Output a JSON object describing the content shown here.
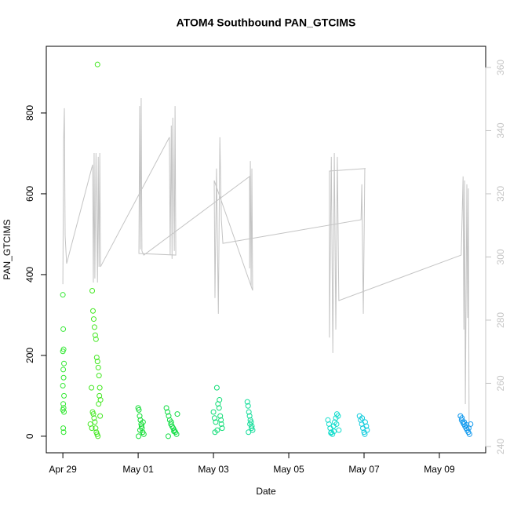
{
  "chart_data": {
    "type": "scatter",
    "title": "ATOM4 Southbound PAN_GTCIMS",
    "x_label": "Date",
    "y_label": "PAN_GTCIMS",
    "xlim": [
      -0.44,
      11.23
    ],
    "ylim": [
      -41,
      965
    ],
    "y2lim": [
      238,
      366.7
    ],
    "xticks": [
      {
        "value": 0,
        "label": "Apr 29"
      },
      {
        "value": 2,
        "label": "May 01"
      },
      {
        "value": 4,
        "label": "May 03"
      },
      {
        "value": 6,
        "label": "May 05"
      },
      {
        "value": 8,
        "label": "May 07"
      },
      {
        "value": 10,
        "label": "May 09"
      }
    ],
    "yticks": [
      0,
      200,
      400,
      600,
      800
    ],
    "y2ticks": [
      240,
      260,
      280,
      300,
      320,
      340,
      360
    ],
    "series": [
      {
        "color": "#33e833",
        "x": [
          0.0,
          0.01,
          0.02,
          0.0,
          0.03,
          0.01,
          0.02,
          0.0,
          0.03,
          0.01,
          0.02,
          0.0,
          0.03,
          0.01,
          0.02
        ],
        "values": [
          350,
          265,
          215,
          210,
          180,
          165,
          145,
          125,
          100,
          80,
          70,
          65,
          60,
          20,
          10
        ]
      },
      {
        "color": "#44e822",
        "x": [
          0.73,
          0.76,
          0.78,
          0.8,
          0.82,
          0.84,
          0.86,
          0.88,
          0.9,
          0.92,
          0.94,
          0.96,
          0.98,
          1.0,
          0.79,
          0.81,
          0.83,
          0.85,
          0.87,
          0.89,
          0.91,
          0.93,
          0.95,
          0.97,
          0.99,
          0.77,
          0.92
        ],
        "values": [
          30,
          120,
          360,
          310,
          290,
          270,
          250,
          240,
          195,
          185,
          170,
          150,
          120,
          90,
          60,
          55,
          45,
          35,
          20,
          10,
          5,
          0,
          80,
          100,
          50,
          20,
          920
        ]
      },
      {
        "color": "#11dd33",
        "x": [
          2.0,
          2.02,
          2.04,
          2.06,
          2.08,
          2.1,
          2.12,
          2.15,
          2.01,
          2.05,
          2.09,
          2.13
        ],
        "values": [
          70,
          65,
          50,
          40,
          30,
          20,
          10,
          5,
          0,
          15,
          25,
          35
        ]
      },
      {
        "color": "#11dd44",
        "x": [
          2.75,
          2.78,
          2.81,
          2.84,
          2.87,
          2.9,
          2.93,
          2.96,
          2.99,
          3.02,
          3.04,
          2.8,
          2.88,
          2.95
        ],
        "values": [
          70,
          60,
          50,
          40,
          30,
          25,
          20,
          15,
          10,
          5,
          55,
          0,
          35,
          12
        ]
      },
      {
        "color": "#11dd77",
        "x": [
          4.0,
          4.03,
          4.06,
          4.09,
          4.12,
          4.15,
          4.18,
          4.21,
          4.23,
          4.04,
          4.1,
          4.16,
          4.2
        ],
        "values": [
          60,
          45,
          35,
          120,
          80,
          70,
          50,
          30,
          20,
          10,
          15,
          90,
          40
        ]
      },
      {
        "color": "#11dd99",
        "x": [
          4.9,
          4.92,
          4.94,
          4.96,
          4.98,
          5.0,
          5.02,
          5.04,
          4.93,
          4.97,
          5.01
        ],
        "values": [
          85,
          75,
          60,
          50,
          40,
          35,
          25,
          15,
          10,
          30,
          20
        ]
      },
      {
        "color": "#11ddcc",
        "x": [
          7.04,
          7.07,
          7.1,
          7.13,
          7.16,
          7.19,
          7.22,
          7.25,
          7.28,
          7.31,
          7.33,
          7.12,
          7.2,
          7.27
        ],
        "values": [
          40,
          30,
          20,
          10,
          5,
          25,
          35,
          45,
          55,
          50,
          15,
          8,
          12,
          30
        ]
      },
      {
        "color": "#11ccdd",
        "x": [
          7.88,
          7.91,
          7.94,
          7.97,
          8.0,
          8.03,
          8.06,
          8.08,
          7.95,
          8.02
        ],
        "values": [
          50,
          40,
          30,
          20,
          10,
          35,
          25,
          15,
          45,
          5
        ]
      },
      {
        "color": "#1199ee",
        "x": [
          10.56,
          10.59,
          10.62,
          10.65,
          10.68,
          10.71,
          10.74,
          10.77,
          10.8,
          10.83,
          10.6,
          10.66,
          10.72,
          10.78
        ],
        "values": [
          50,
          40,
          35,
          30,
          25,
          20,
          15,
          10,
          5,
          30,
          45,
          35,
          28,
          20
        ]
      }
    ],
    "line_series": {
      "color": "#c4c4c4",
      "axis": "y2",
      "x": [
        0.0,
        0.02,
        0.04,
        0.06,
        0.1,
        0.79,
        0.81,
        0.83,
        0.85,
        0.88,
        0.92,
        0.94,
        0.96,
        0.98,
        1.0,
        2.83,
        2.85,
        2.88,
        2.9,
        2.92,
        2.96,
        2.98,
        3.0,
        2.02,
        2.04,
        2.06,
        2.08,
        2.1,
        2.15,
        4.96,
        4.96,
        4.98,
        5.0,
        5.02,
        5.04,
        4.02,
        4.04,
        4.08,
        4.13,
        4.17,
        4.21,
        4.25,
        7.92,
        7.94,
        7.98,
        8.02,
        8.04,
        7.08,
        7.08,
        7.13,
        7.17,
        7.21,
        7.25,
        7.29,
        7.33,
        10.58,
        10.63,
        10.65,
        10.67,
        10.69,
        10.73,
        10.75,
        10.77,
        10.79
      ],
      "values": [
        291.4,
        336.6,
        347.1,
        306.8,
        297.9,
        329.2,
        291.9,
        332.9,
        293.2,
        332.9,
        291.9,
        331.7,
        296.9,
        332.9,
        296.9,
        337.9,
        300.6,
        341.6,
        299.4,
        344.1,
        301.9,
        347.8,
        300.6,
        301.1,
        347.8,
        302.4,
        350.3,
        301.9,
        300.6,
        325.5,
        296.4,
        330.4,
        290.7,
        328.0,
        289.4,
        324.2,
        287.0,
        328.0,
        282.0,
        337.9,
        311.8,
        304.3,
        311.8,
        323.0,
        282.0,
        328.0,
        328.0,
        327.2,
        274.5,
        331.7,
        269.6,
        332.9,
        277.0,
        331.7,
        286.2,
        300.6,
        325.5,
        277.0,
        324.2,
        253.4,
        323.0,
        280.7,
        321.7,
        244.7
      ]
    }
  }
}
